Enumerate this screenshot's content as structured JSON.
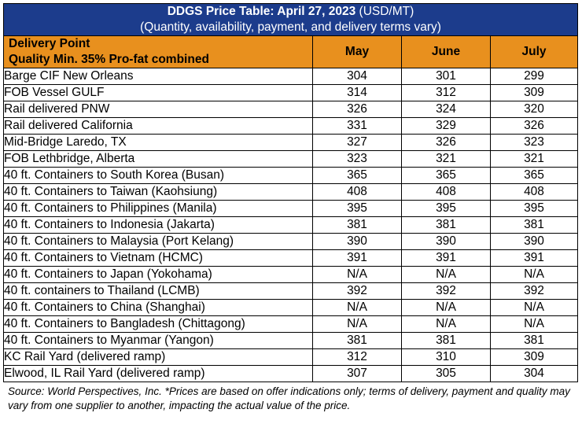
{
  "table": {
    "title_bold": "DDGS Price Table: April 27, 2023",
    "title_unit": " (USD/MT)",
    "subtitle": "(Quantity, availability, payment, and delivery terms vary)",
    "header": {
      "point_line1": "Delivery Point",
      "point_line2": "Quality Min. 35% Pro-fat combined",
      "months": [
        "May",
        "June",
        "July"
      ]
    },
    "rows": [
      {
        "point": "Barge CIF New Orleans",
        "may": "304",
        "june": "301",
        "july": "299"
      },
      {
        "point": "FOB Vessel GULF",
        "may": "314",
        "june": "312",
        "july": "309"
      },
      {
        "point": "Rail delivered PNW",
        "may": "326",
        "june": "324",
        "july": "320"
      },
      {
        "point": "Rail delivered California",
        "may": "331",
        "june": "329",
        "july": "326"
      },
      {
        "point": "Mid-Bridge Laredo, TX",
        "may": "327",
        "june": "326",
        "july": "323"
      },
      {
        "point": "FOB Lethbridge, Alberta",
        "may": "323",
        "june": "321",
        "july": "321"
      },
      {
        "point": "40 ft. Containers to South Korea (Busan)",
        "may": "365",
        "june": "365",
        "july": "365"
      },
      {
        "point": "40 ft. Containers to Taiwan (Kaohsiung)",
        "may": "408",
        "june": "408",
        "july": "408"
      },
      {
        "point": "40 ft. Containers to Philippines (Manila)",
        "may": "395",
        "june": "395",
        "july": "395"
      },
      {
        "point": "40 ft. Containers to Indonesia (Jakarta)",
        "may": "381",
        "june": "381",
        "july": "381"
      },
      {
        "point": "40 ft. Containers to Malaysia (Port Kelang)",
        "may": "390",
        "june": "390",
        "july": "390"
      },
      {
        "point": "40 ft. Containers to Vietnam (HCMC)",
        "may": "391",
        "june": "391",
        "july": "391"
      },
      {
        "point": "40 ft. Containers to Japan (Yokohama)",
        "may": "N/A",
        "june": "N/A",
        "july": "N/A"
      },
      {
        "point": "40 ft. containers to Thailand (LCMB)",
        "may": "392",
        "june": "392",
        "july": "392"
      },
      {
        "point": "40 ft. Containers to China (Shanghai)",
        "may": "N/A",
        "june": "N/A",
        "july": "N/A"
      },
      {
        "point": "40 ft. Containers to Bangladesh (Chittagong)",
        "may": "N/A",
        "june": "N/A",
        "july": "N/A"
      },
      {
        "point": "40 ft. Containers to Myanmar (Yangon)",
        "may": "381",
        "june": "381",
        "july": "381"
      },
      {
        "point": "KC Rail Yard (delivered ramp)",
        "may": "312",
        "june": "310",
        "july": "309"
      },
      {
        "point": "Elwood, IL Rail Yard (delivered ramp)",
        "may": "307",
        "june": "305",
        "july": "304"
      }
    ],
    "source_note": "Source: World Perspectives, Inc. *Prices are based on offer indications only; terms of delivery, payment and quality may vary from one supplier to another, impacting the actual value of the price."
  },
  "colors": {
    "title_bg": "#1c3c8c",
    "header_bg": "#e8901e"
  }
}
